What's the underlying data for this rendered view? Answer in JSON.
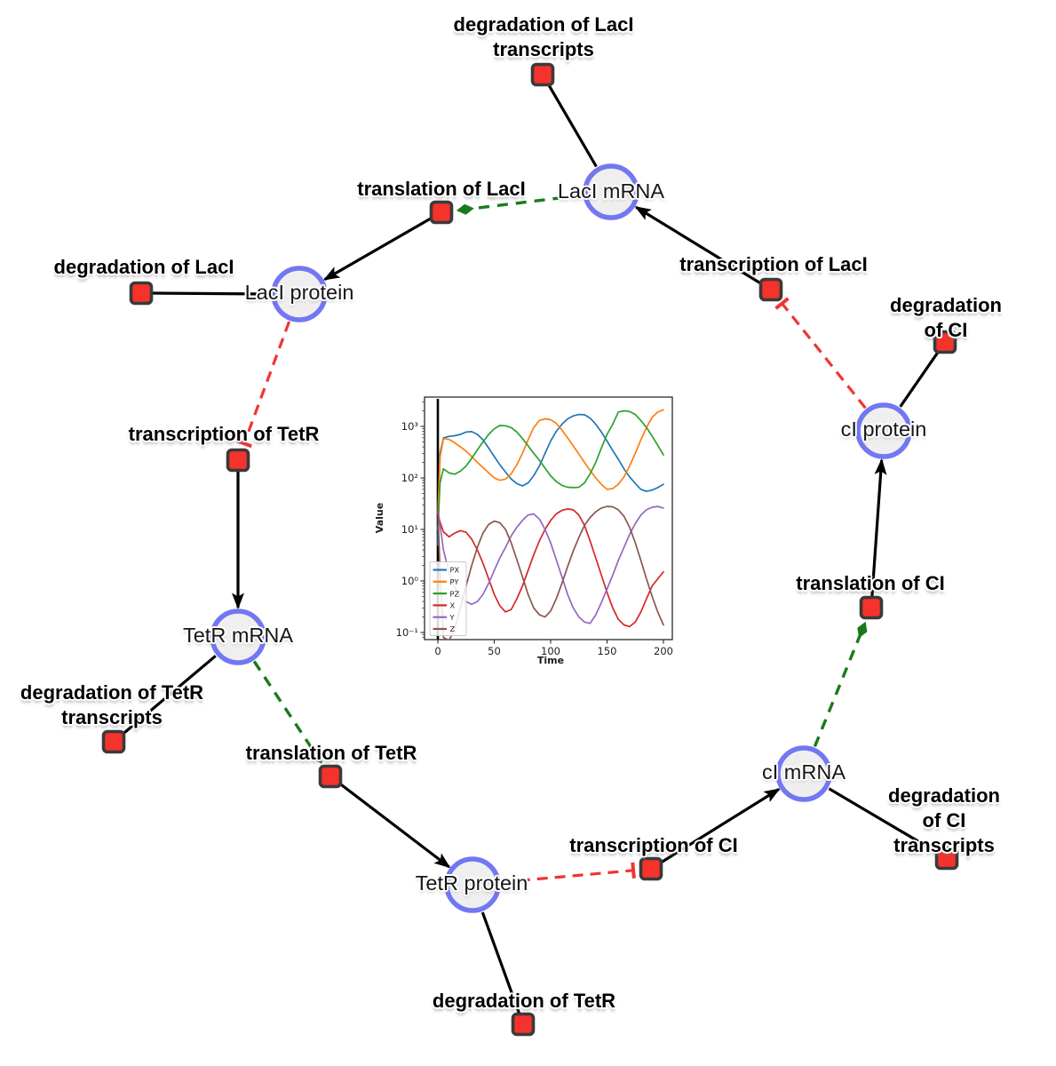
{
  "diagram": {
    "species": [
      {
        "id": "laci-mrna",
        "label": "LacI mRNA"
      },
      {
        "id": "laci-protein",
        "label": "LacI protein"
      },
      {
        "id": "ci-protein",
        "label": "cI protein"
      },
      {
        "id": "tetr-mrna",
        "label": "TetR mRNA"
      },
      {
        "id": "ci-mrna",
        "label": "cI mRNA"
      },
      {
        "id": "tetr-protein",
        "label": "TetR protein"
      }
    ],
    "reactions": [
      {
        "id": "degradation-laci-transcripts",
        "label": "degradation of LacI\ntranscripts"
      },
      {
        "id": "translation-laci",
        "label": "translation of LacI"
      },
      {
        "id": "degradation-laci",
        "label": "degradation of LacI"
      },
      {
        "id": "transcription-laci",
        "label": "transcription of LacI"
      },
      {
        "id": "degradation-ci",
        "label": "degradation of CI"
      },
      {
        "id": "transcription-tetr",
        "label": "transcription of TetR"
      },
      {
        "id": "translation-ci",
        "label": "translation of CI"
      },
      {
        "id": "degradation-tetr-transcripts",
        "label": "degradation of TetR\ntranscripts"
      },
      {
        "id": "translation-tetr",
        "label": "translation of TetR"
      },
      {
        "id": "degradation-ci-transcripts",
        "label": "degradation of CI\ntranscripts"
      },
      {
        "id": "transcription-ci",
        "label": "transcription of CI"
      },
      {
        "id": "degradation-tetr",
        "label": "degradation of TetR"
      }
    ],
    "colors": {
      "species_fill": "#efefef",
      "species_border": "#7277f2",
      "reaction_fill": "#f5322b",
      "reaction_border": "#3a3a3a",
      "edge_solid": "#000000",
      "edge_activation": "#1a7a1a",
      "edge_inhibition": "#f23333"
    }
  },
  "chart_data": {
    "type": "line",
    "title": "",
    "xlabel": "Time",
    "ylabel": "Value",
    "xlim": [
      0,
      200
    ],
    "x_ticks": [
      0,
      50,
      100,
      150,
      200
    ],
    "y_scale": "log",
    "y_tick_exponents": [
      3,
      2,
      1,
      0,
      -1
    ],
    "y_tick_labels": [
      "10³",
      "10²",
      "10¹",
      "10⁰",
      "10⁻¹"
    ],
    "ylim": [
      0.057,
      3700
    ],
    "vline_x": 0,
    "grid": false,
    "legend_position": "lower left",
    "x": [
      0,
      2,
      5,
      10,
      15,
      20,
      25,
      30,
      35,
      40,
      45,
      50,
      55,
      60,
      65,
      70,
      75,
      80,
      85,
      90,
      95,
      100,
      105,
      110,
      115,
      120,
      125,
      130,
      135,
      140,
      145,
      150,
      155,
      160,
      165,
      170,
      175,
      180,
      185,
      190,
      195,
      200
    ],
    "series": [
      {
        "name": "PX",
        "color": "#1f77b4",
        "y": [
          5,
          300,
          600,
          640,
          660,
          700,
          780,
          790,
          700,
          550,
          380,
          260,
          180,
          130,
          95,
          78,
          70,
          80,
          110,
          170,
          300,
          520,
          800,
          1100,
          1400,
          1600,
          1700,
          1680,
          1450,
          1100,
          780,
          520,
          340,
          230,
          150,
          105,
          78,
          60,
          55,
          58,
          65,
          75
        ]
      },
      {
        "name": "PY",
        "color": "#ff7f0e",
        "y": [
          20,
          250,
          580,
          560,
          480,
          400,
          330,
          260,
          200,
          160,
          125,
          100,
          90,
          95,
          120,
          180,
          300,
          550,
          950,
          1300,
          1400,
          1350,
          1150,
          850,
          600,
          420,
          290,
          200,
          140,
          100,
          75,
          60,
          62,
          75,
          105,
          170,
          300,
          550,
          950,
          1500,
          1900,
          2100
        ]
      },
      {
        "name": "PZ",
        "color": "#2ca02c",
        "y": [
          10,
          80,
          150,
          125,
          118,
          135,
          170,
          240,
          350,
          500,
          700,
          900,
          1040,
          1030,
          950,
          780,
          580,
          420,
          300,
          220,
          155,
          110,
          85,
          72,
          66,
          65,
          66,
          80,
          120,
          200,
          380,
          700,
          1100,
          1900,
          2000,
          1950,
          1700,
          1300,
          950,
          650,
          430,
          280
        ]
      },
      {
        "name": "X",
        "color": "#d62728",
        "y": [
          20,
          14,
          9,
          7.2,
          8.5,
          9.5,
          8.8,
          6.5,
          4,
          2.2,
          1.1,
          0.55,
          0.33,
          0.25,
          0.28,
          0.45,
          0.8,
          1.6,
          3.2,
          6,
          10,
          15,
          20,
          23.5,
          25,
          24,
          19,
          12,
          6,
          2.8,
          1.3,
          0.6,
          0.3,
          0.18,
          0.14,
          0.13,
          0.16,
          0.25,
          0.45,
          0.8,
          1.1,
          1.5
        ]
      },
      {
        "name": "Y",
        "color": "#9467bd",
        "y": [
          25,
          12,
          4,
          1.4,
          0.75,
          0.5,
          0.4,
          0.35,
          0.4,
          0.55,
          0.9,
          1.6,
          2.8,
          4.5,
          7.5,
          11,
          15,
          19,
          20,
          16,
          10,
          5.5,
          2.6,
          1.2,
          0.55,
          0.3,
          0.2,
          0.16,
          0.15,
          0.22,
          0.38,
          0.7,
          1.3,
          2.5,
          4.5,
          8,
          13,
          19,
          24,
          27,
          28,
          26
        ]
      },
      {
        "name": "Z",
        "color": "#8c564b",
        "y": [
          25,
          1.5,
          0.08,
          0.07,
          0.12,
          0.3,
          0.8,
          2,
          4.5,
          8.5,
          12.5,
          14.5,
          13.5,
          10,
          5.5,
          2.6,
          1.2,
          0.55,
          0.3,
          0.22,
          0.2,
          0.26,
          0.45,
          0.9,
          1.9,
          3.8,
          7,
          12,
          17,
          22,
          26,
          28,
          27.5,
          24,
          18,
          11,
          5.5,
          2.5,
          1.1,
          0.5,
          0.25,
          0.14
        ]
      }
    ]
  }
}
